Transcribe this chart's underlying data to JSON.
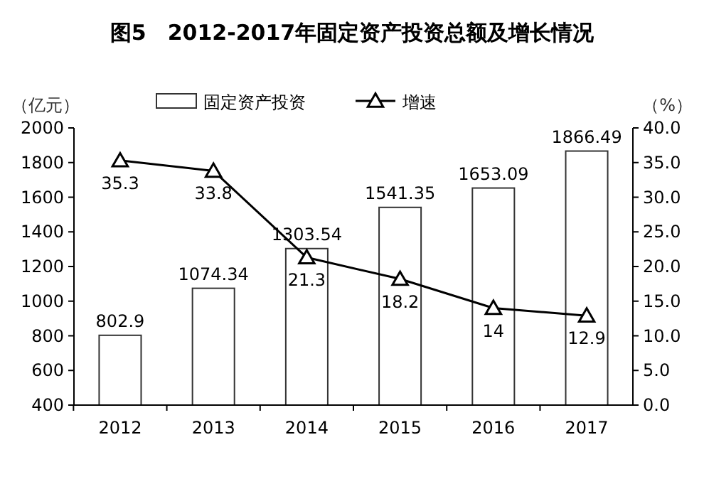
{
  "chart_data": {
    "type": "bar",
    "title": "图5　2012-2017年固定资产投资总额及增长情况",
    "xlabel": null,
    "ylabel": "（亿元）",
    "y2label": "（%）",
    "categories": [
      "2012",
      "2013",
      "2014",
      "2015",
      "2016",
      "2017"
    ],
    "series": [
      {
        "name": "固定资产投资",
        "color": "#ffffff",
        "values": [
          802.9,
          1074.34,
          1303.54,
          1541.35,
          1653.09,
          1866.49
        ]
      },
      {
        "name": "增速",
        "type": "line",
        "axis": "y2",
        "color": "#000000",
        "marker": "triangle",
        "values": [
          35.3,
          33.8,
          21.3,
          18.2,
          14,
          12.9
        ]
      }
    ],
    "data_labels": true,
    "legend": "top left",
    "grid": false,
    "ylim": [
      400,
      2000
    ],
    "yticks": [
      400,
      600,
      800,
      1000,
      1200,
      1400,
      1600,
      1800,
      2000
    ],
    "y2lim": [
      0,
      40
    ],
    "y2ticks": [
      {
        "value": 0,
        "label": "0.0"
      },
      {
        "value": 5,
        "label": "5.0"
      },
      {
        "value": 10,
        "label": "10.0"
      },
      {
        "value": 15,
        "label": "15.0"
      },
      {
        "value": 20,
        "label": "20.0"
      },
      {
        "value": 25,
        "label": "25.0"
      },
      {
        "value": 30,
        "label": "30.0"
      },
      {
        "value": 35,
        "label": "35.0"
      },
      {
        "value": 40,
        "label": "40.0"
      }
    ]
  }
}
